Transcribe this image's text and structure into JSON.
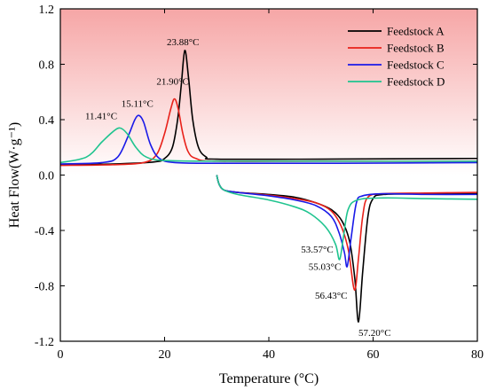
{
  "chart_data": {
    "type": "line",
    "title": "",
    "xlabel": "Temperature (°C)",
    "ylabel": "Heat Flow(W·g⁻¹)",
    "xlim": [
      0,
      80
    ],
    "ylim": [
      -1.2,
      1.2
    ],
    "xticks": [
      0,
      20,
      40,
      60,
      80
    ],
    "yticks": [
      -1.2,
      -0.8,
      -0.4,
      0.0,
      0.4,
      0.8,
      1.2
    ],
    "ytick_labels": [
      "-1.2",
      "-0.8",
      "-0.4",
      "0.0",
      "0.4",
      "0.8",
      "1.2"
    ],
    "background": "red gradient above the 0 line (pink near top fading to white)",
    "grid": false,
    "legend_position": "top-right",
    "series": [
      {
        "name": "Feedstock A",
        "color": "#000000",
        "cooling": [
          [
            0,
            0.075
          ],
          [
            10,
            0.08
          ],
          [
            18,
            0.095
          ],
          [
            20,
            0.12
          ],
          [
            21.5,
            0.2
          ],
          [
            22.5,
            0.4
          ],
          [
            23.2,
            0.65
          ],
          [
            23.88,
            0.9
          ],
          [
            24.6,
            0.7
          ],
          [
            25.4,
            0.4
          ],
          [
            26.5,
            0.2
          ],
          [
            28,
            0.13
          ],
          [
            30,
            0.115
          ],
          [
            50,
            0.115
          ],
          [
            80,
            0.12
          ]
        ],
        "heating": [
          [
            30,
            0.0
          ],
          [
            30.5,
            -0.07
          ],
          [
            31.5,
            -0.11
          ],
          [
            34,
            -0.125
          ],
          [
            40,
            -0.14
          ],
          [
            45,
            -0.16
          ],
          [
            49,
            -0.2
          ],
          [
            52,
            -0.25
          ],
          [
            54,
            -0.33
          ],
          [
            55.5,
            -0.48
          ],
          [
            56.5,
            -0.75
          ],
          [
            57.2,
            -1.06
          ],
          [
            58,
            -0.7
          ],
          [
            59,
            -0.3
          ],
          [
            60,
            -0.17
          ],
          [
            62,
            -0.14
          ],
          [
            70,
            -0.135
          ],
          [
            80,
            -0.135
          ]
        ]
      },
      {
        "name": "Feedstock B",
        "color": "#e8211a",
        "cooling": [
          [
            0,
            0.07
          ],
          [
            10,
            0.075
          ],
          [
            16,
            0.09
          ],
          [
            18.5,
            0.15
          ],
          [
            20,
            0.3
          ],
          [
            21.2,
            0.48
          ],
          [
            21.9,
            0.55
          ],
          [
            22.6,
            0.48
          ],
          [
            23.5,
            0.3
          ],
          [
            24.5,
            0.17
          ],
          [
            26,
            0.12
          ],
          [
            30,
            0.1
          ],
          [
            50,
            0.1
          ],
          [
            80,
            0.1
          ]
        ],
        "heating": [
          [
            30,
            0.0
          ],
          [
            30.5,
            -0.07
          ],
          [
            31.5,
            -0.11
          ],
          [
            34,
            -0.125
          ],
          [
            40,
            -0.145
          ],
          [
            45,
            -0.17
          ],
          [
            49,
            -0.2
          ],
          [
            52,
            -0.26
          ],
          [
            54,
            -0.38
          ],
          [
            55.3,
            -0.55
          ],
          [
            56.43,
            -0.83
          ],
          [
            57.2,
            -0.6
          ],
          [
            58,
            -0.3
          ],
          [
            59,
            -0.16
          ],
          [
            62,
            -0.135
          ],
          [
            70,
            -0.13
          ],
          [
            80,
            -0.125
          ]
        ]
      },
      {
        "name": "Feedstock C",
        "color": "#1a1ae8",
        "cooling": [
          [
            0,
            0.08
          ],
          [
            8,
            0.09
          ],
          [
            11,
            0.13
          ],
          [
            13,
            0.28
          ],
          [
            14.3,
            0.4
          ],
          [
            15.11,
            0.43
          ],
          [
            16,
            0.38
          ],
          [
            17.3,
            0.22
          ],
          [
            19,
            0.12
          ],
          [
            22,
            0.09
          ],
          [
            30,
            0.085
          ],
          [
            50,
            0.085
          ],
          [
            80,
            0.09
          ]
        ],
        "heating": [
          [
            30,
            0.0
          ],
          [
            30.5,
            -0.07
          ],
          [
            31.5,
            -0.11
          ],
          [
            34,
            -0.125
          ],
          [
            40,
            -0.15
          ],
          [
            45,
            -0.18
          ],
          [
            49,
            -0.22
          ],
          [
            52,
            -0.3
          ],
          [
            53.5,
            -0.42
          ],
          [
            54.5,
            -0.56
          ],
          [
            55.03,
            -0.66
          ],
          [
            55.8,
            -0.45
          ],
          [
            56.8,
            -0.2
          ],
          [
            58,
            -0.15
          ],
          [
            62,
            -0.135
          ],
          [
            70,
            -0.14
          ],
          [
            80,
            -0.14
          ]
        ]
      },
      {
        "name": "Feedstock D",
        "color": "#1fc48f",
        "cooling": [
          [
            0,
            0.09
          ],
          [
            5,
            0.13
          ],
          [
            8,
            0.24
          ],
          [
            10,
            0.31
          ],
          [
            11.41,
            0.34
          ],
          [
            12.8,
            0.3
          ],
          [
            14.5,
            0.2
          ],
          [
            16.5,
            0.13
          ],
          [
            20,
            0.105
          ],
          [
            30,
            0.1
          ],
          [
            50,
            0.1
          ],
          [
            80,
            0.1
          ]
        ],
        "heating": [
          [
            30,
            0.0
          ],
          [
            30.5,
            -0.07
          ],
          [
            31.5,
            -0.11
          ],
          [
            34,
            -0.14
          ],
          [
            40,
            -0.18
          ],
          [
            45,
            -0.23
          ],
          [
            48,
            -0.28
          ],
          [
            51,
            -0.38
          ],
          [
            52.8,
            -0.5
          ],
          [
            53.57,
            -0.61
          ],
          [
            54.3,
            -0.45
          ],
          [
            55.2,
            -0.25
          ],
          [
            57,
            -0.18
          ],
          [
            62,
            -0.165
          ],
          [
            70,
            -0.17
          ],
          [
            80,
            -0.175
          ]
        ]
      }
    ],
    "annotations": [
      {
        "text": "23.88°C",
        "x": 23.88,
        "y": 0.9
      },
      {
        "text": "21.90°C",
        "x": 21.9,
        "y": 0.55
      },
      {
        "text": "15.11°C",
        "x": 15.11,
        "y": 0.43
      },
      {
        "text": "11.41°C",
        "x": 11.41,
        "y": 0.34
      },
      {
        "text": "53.57°C",
        "x": 53.57,
        "y": -0.61
      },
      {
        "text": "55.03°C",
        "x": 55.03,
        "y": -0.66
      },
      {
        "text": "56.43°C",
        "x": 56.43,
        "y": -0.83
      },
      {
        "text": "57.20°C",
        "x": 57.2,
        "y": -1.06
      }
    ]
  }
}
